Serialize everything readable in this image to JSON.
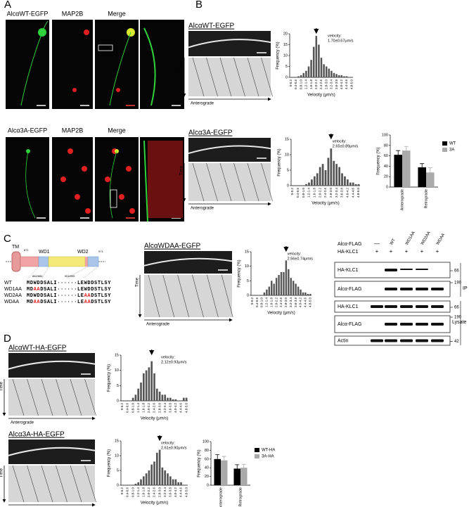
{
  "figure": {
    "panel_labels": [
      "A",
      "B",
      "C",
      "D"
    ],
    "A": {
      "rows": [
        {
          "labels": [
            "AlcαWT-EGFP",
            "MAP2B",
            "Merge"
          ]
        },
        {
          "labels": [
            "Alcα3A-EGFP",
            "MAP2B",
            "Merge"
          ]
        }
      ]
    },
    "kymographs": [
      {
        "title": "AlcαWT-EGFP",
        "y_label": "Time",
        "x_label": "Anterograde"
      },
      {
        "title": "Alcα3A-EGFP",
        "y_label": "Time",
        "x_label": "Anterograde"
      },
      {
        "title": "AlcαWDAA-EGFP",
        "y_label": "Time",
        "x_label": "Anterograde"
      },
      {
        "title": "AlcαWT-HA-EGFP",
        "y_label": "Time",
        "x_label": "Anterograde"
      },
      {
        "title": "Alcα3A-HA-EGFP",
        "y_label": "Time",
        "x_label": "Anterograde"
      }
    ],
    "domain": {
      "labels": [
        "TM",
        "WD1",
        "WD2"
      ],
      "numbers": [
        "871",
        "971"
      ],
      "sites": [
        "882/884",
        "904/905"
      ]
    },
    "alignment": [
      {
        "name": "WT",
        "segments": [
          "MDWDDSALI······LEWDDSTLSY"
        ]
      },
      {
        "name": "WD1AA",
        "segments": [
          "MD",
          "AA",
          "DSALI······LEWDDSTLSY"
        ]
      },
      {
        "name": "WD2AA",
        "segments": [
          "MDWDDSALI······LE",
          "AA",
          "DSTLSY"
        ]
      },
      {
        "name": "WDAA",
        "segments": [
          "MD",
          "AA",
          "DSALI······LE",
          "AA",
          "DSTLSY"
        ]
      }
    ],
    "blot": {
      "header_rows": [
        {
          "label": "Alcα-FLAG",
          "lanes": [
            "—",
            "WT",
            "WD1AA",
            "WD2AA",
            "WDAA"
          ]
        },
        {
          "label": "HA-KLC1",
          "lanes": [
            "+",
            "+",
            "+",
            "+",
            "+"
          ]
        }
      ],
      "rows": [
        {
          "label": "HA-KLC1",
          "marker": "66"
        },
        {
          "label": "Alcα-FLAG",
          "marker": "190"
        },
        {
          "label": "HA-KLC1",
          "marker": "66"
        },
        {
          "label": "Alcα-FLAG",
          "marker": "190"
        },
        {
          "label": "Actin",
          "marker": "42"
        }
      ],
      "groups": [
        "IP",
        "Lysate"
      ]
    }
  },
  "chart_data": [
    {
      "type": "bar",
      "x_label": "Velocity (μm/s)",
      "y_label": "Frequency (%)",
      "color": "#555555",
      "annotation": [
        "velocity:",
        "1.70±0.67μm/s"
      ],
      "categories": [
        "0-0.2",
        null,
        "0.4-0.6",
        null,
        "0.8-1.0",
        null,
        "1.2-1.4",
        null,
        "1.6-1.8",
        null,
        "2.0-2.2",
        null,
        "2.4-2.6",
        null,
        "2.8-3.0",
        null,
        "3.2-3.4",
        null,
        "3.6-3.8",
        null,
        "4.0-4.2",
        null,
        "4.4-4.6",
        null,
        "4.8-5.0"
      ],
      "values": [
        0,
        0,
        0,
        0.5,
        1,
        2,
        3,
        5,
        8,
        14,
        19,
        15,
        9,
        6,
        5,
        4,
        3,
        2,
        1.5,
        1,
        1,
        0.5,
        0.5,
        0,
        0
      ],
      "ylim": [
        0,
        20
      ],
      "yticks": [
        0,
        5,
        10,
        15,
        20
      ]
    },
    {
      "type": "bar",
      "x_label": "Velocity (μm/s)",
      "y_label": "Frequency (%)",
      "color": "#555555",
      "annotation": [
        "velocity:",
        "2.65±0.89μm/s"
      ],
      "categories": [
        "0-0.2",
        null,
        "0.4-0.6",
        null,
        "0.8-1.0",
        null,
        "1.2-1.4",
        null,
        "1.6-1.8",
        null,
        "2.0-2.2",
        null,
        "2.4-2.6",
        null,
        "2.8-3.0",
        null,
        "3.2-3.4",
        null,
        "3.6-3.8",
        null,
        "4.0-4.2",
        null,
        "4.4-4.6",
        null,
        "4.8-5.0"
      ],
      "values": [
        0,
        0,
        0,
        0,
        0,
        0.5,
        1,
        2,
        3,
        4,
        6,
        7,
        5,
        9,
        12,
        8,
        7,
        6,
        4,
        3,
        2,
        1,
        1,
        0.5,
        0.5
      ],
      "ylim": [
        0,
        15
      ],
      "yticks": [
        0,
        5,
        10,
        15
      ]
    },
    {
      "type": "grouped_bar",
      "y_label": "Frequency (%)",
      "categories": [
        "Anterograde",
        "Retrograde"
      ],
      "series": [
        {
          "name": "WT",
          "color": "#000000",
          "values": [
            62,
            38
          ],
          "errors": [
            8,
            7
          ]
        },
        {
          "name": "3A",
          "color": "#aaaaaa",
          "values": [
            70,
            28
          ],
          "errors": [
            8,
            9
          ]
        }
      ],
      "ylim": [
        0,
        100
      ],
      "yticks": [
        0,
        20,
        40,
        60,
        80,
        100
      ]
    },
    {
      "type": "bar",
      "x_label": "Velocity (μm/s)",
      "y_label": "Frequency (%)",
      "color": "#555555",
      "annotation": [
        "velocity:",
        "2.56±0.74μm/s"
      ],
      "categories": [
        "0-0.2",
        null,
        "0.4-0.6",
        null,
        "0.8-1.0",
        null,
        "1.2-1.4",
        null,
        "1.6-1.8",
        null,
        "2.0-2.2",
        null,
        "2.4-2.6",
        null,
        "2.8-3.0",
        null,
        "3.2-3.4",
        null,
        "3.6-3.8",
        null,
        "4.0-4.2",
        null,
        "4.4-4.6",
        null,
        "4.8-5.0"
      ],
      "values": [
        0,
        0,
        0,
        0,
        0,
        1,
        2,
        3,
        5,
        4,
        6,
        7,
        8,
        8,
        12,
        9,
        6,
        5,
        4,
        3,
        2,
        1,
        1,
        0.5,
        0.5
      ],
      "ylim": [
        0,
        15
      ],
      "yticks": [
        0,
        5,
        10,
        15
      ]
    },
    {
      "type": "bar",
      "x_label": "Velocity (μm/s)",
      "y_label": "Frequency (%)",
      "color": "#555555",
      "annotation": [
        "velocity:",
        "2.12±0.93μm/s"
      ],
      "categories": [
        "0-0.2",
        null,
        "0.4-0.6",
        null,
        "0.8-1.0",
        null,
        "1.2-1.4",
        null,
        "1.6-1.8",
        null,
        "2.0-2.2",
        null,
        "2.4-2.6",
        null,
        "2.8-3.0",
        null,
        "3.2-3.4",
        null,
        "3.6-3.8",
        null,
        "4.0-4.2",
        null,
        "4.4-4.6",
        null,
        "4.8-5.0"
      ],
      "values": [
        0,
        0,
        0,
        0,
        1,
        2,
        4,
        6,
        9,
        10,
        11,
        13,
        9,
        4,
        3,
        2,
        2,
        1,
        1,
        0.5,
        0.5,
        0,
        0,
        1,
        1
      ],
      "ylim": [
        0,
        15
      ],
      "yticks": [
        0,
        5,
        10,
        15
      ]
    },
    {
      "type": "bar",
      "x_label": "Velocity (μm/s)",
      "y_label": "Frequency (%)",
      "color": "#555555",
      "annotation": [
        "velocity:",
        "2.61±0.90μm/s"
      ],
      "categories": [
        "0-0.2",
        null,
        "0.4-0.6",
        null,
        "0.8-1.0",
        null,
        "1.2-1.4",
        null,
        "1.6-1.8",
        null,
        "2.0-2.2",
        null,
        "2.4-2.6",
        null,
        "2.8-3.0",
        null,
        "3.2-3.4",
        null,
        "3.6-3.8",
        null,
        "4.0-4.2",
        null,
        "4.4-4.6",
        null,
        "4.8-5.0"
      ],
      "values": [
        0,
        0,
        0,
        0,
        0,
        0.5,
        1,
        2,
        3,
        4,
        5,
        7,
        8,
        11,
        12,
        6,
        5,
        4,
        3,
        2,
        2,
        1,
        1,
        0,
        0
      ],
      "ylim": [
        0,
        15
      ],
      "yticks": [
        0,
        5,
        10,
        15
      ]
    },
    {
      "type": "grouped_bar",
      "y_label": "Frequency (%)",
      "categories": [
        "Anterograde",
        "Retrograde"
      ],
      "series": [
        {
          "name": "WT-HA",
          "color": "#000000",
          "values": [
            60,
            38
          ],
          "errors": [
            10,
            9
          ]
        },
        {
          "name": "3A-HA",
          "color": "#aaaaaa",
          "values": [
            57,
            40
          ],
          "errors": [
            9,
            8
          ]
        }
      ],
      "ylim": [
        0,
        100
      ],
      "yticks": [
        0,
        20,
        40,
        60,
        80,
        100
      ]
    }
  ]
}
